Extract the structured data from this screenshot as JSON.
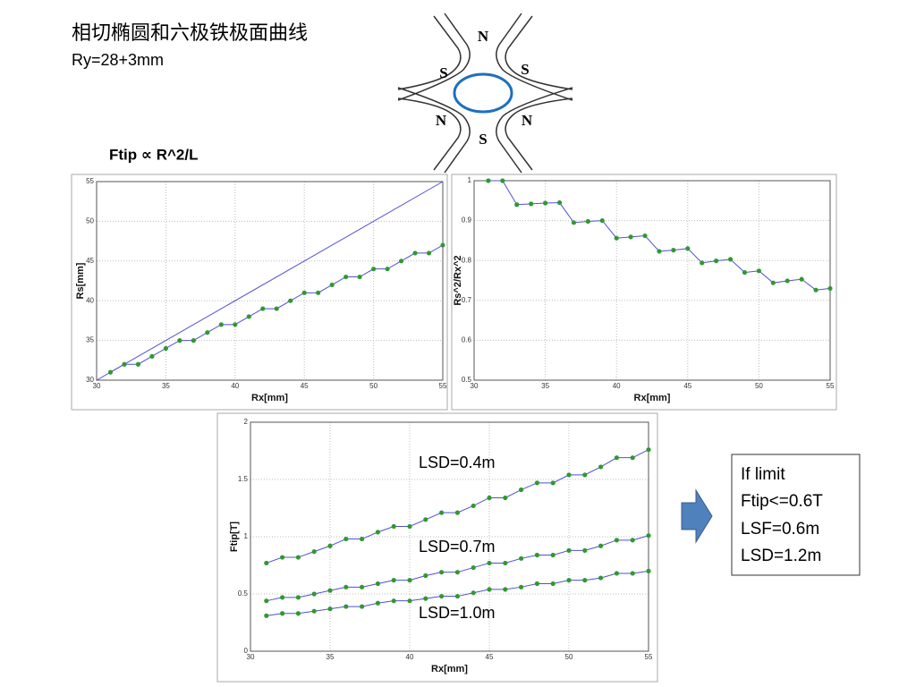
{
  "slide": {
    "title": "相切椭圆和六极铁极面曲线",
    "subtitle": "Ry=28+3mm",
    "formula": "Ftip ∝ R^2/L",
    "magnet": {
      "poles": [
        "N",
        "S",
        "S",
        "N",
        "N",
        "S"
      ]
    },
    "note": [
      "If limit",
      "Ftip<=0.6T",
      "LSF=0.6m",
      "LSD=1.2m"
    ]
  },
  "chart_data": [
    {
      "type": "line",
      "xlabel": "Rx[mm]",
      "ylabel": "Rs[mm]",
      "x": [
        31,
        32,
        33,
        34,
        35,
        36,
        37,
        38,
        39,
        40,
        41,
        42,
        43,
        44,
        45,
        46,
        47,
        48,
        49,
        50,
        51,
        52,
        53,
        54,
        55
      ],
      "xlim": [
        30,
        55
      ],
      "xticks": [
        30,
        35,
        40,
        45,
        50,
        55
      ],
      "ylim": [
        30,
        55
      ],
      "yticks": [
        30,
        35,
        40,
        45,
        50,
        55
      ],
      "grid": true,
      "series": [
        {
          "x": [
            30,
            55
          ],
          "values": [
            30,
            55
          ],
          "color": "#5050d8",
          "markers": false
        },
        {
          "values": [
            31,
            32,
            32,
            33,
            34,
            35,
            35,
            36,
            37,
            37,
            38,
            39,
            39,
            40,
            41,
            41,
            42,
            43,
            43,
            44,
            44,
            45,
            46,
            46,
            47
          ],
          "color": "#5050d8",
          "marker_color": "#2e9a2e",
          "markers": true
        }
      ]
    },
    {
      "type": "line",
      "xlabel": "Rx[mm]",
      "ylabel": "Rs^2/Rx^2",
      "x": [
        31,
        32,
        33,
        34,
        35,
        36,
        37,
        38,
        39,
        40,
        41,
        42,
        43,
        44,
        45,
        46,
        47,
        48,
        49,
        50,
        51,
        52,
        53,
        54,
        55
      ],
      "xlim": [
        30,
        55
      ],
      "xticks": [
        30,
        35,
        40,
        45,
        50,
        55
      ],
      "ylim": [
        0.5,
        1
      ],
      "yticks": [
        0.5,
        0.6,
        0.7,
        0.8,
        0.9,
        1
      ],
      "grid": true,
      "series": [
        {
          "values": [
            1,
            1,
            0.94,
            0.942,
            0.944,
            0.945,
            0.895,
            0.898,
            0.9,
            0.856,
            0.859,
            0.862,
            0.823,
            0.826,
            0.83,
            0.794,
            0.799,
            0.803,
            0.77,
            0.774,
            0.744,
            0.749,
            0.753,
            0.726,
            0.73
          ],
          "color": "#5050d8",
          "marker_color": "#2e9a2e",
          "markers": true
        }
      ]
    },
    {
      "type": "line",
      "xlabel": "Rx[mm]",
      "ylabel": "Ftip[T]",
      "x": [
        31,
        32,
        33,
        34,
        35,
        36,
        37,
        38,
        39,
        40,
        41,
        42,
        43,
        44,
        45,
        46,
        47,
        48,
        49,
        50,
        51,
        52,
        53,
        54,
        55
      ],
      "xlim": [
        30,
        55
      ],
      "xticks": [
        30,
        35,
        40,
        45,
        50,
        55
      ],
      "ylim": [
        0,
        2
      ],
      "yticks": [
        0,
        0.5,
        1,
        1.5,
        2
      ],
      "grid": true,
      "series": [
        {
          "name": "LSD=0.4m",
          "values": [
            0.77,
            0.82,
            0.82,
            0.87,
            0.92,
            0.98,
            0.98,
            1.04,
            1.09,
            1.09,
            1.15,
            1.21,
            1.21,
            1.27,
            1.34,
            1.34,
            1.41,
            1.47,
            1.47,
            1.54,
            1.54,
            1.61,
            1.69,
            1.69,
            1.76
          ],
          "color": "#5050d8",
          "marker_color": "#2e9a2e",
          "markers": true
        },
        {
          "name": "LSD=0.7m",
          "values": [
            0.44,
            0.47,
            0.47,
            0.5,
            0.53,
            0.56,
            0.56,
            0.59,
            0.62,
            0.62,
            0.66,
            0.69,
            0.69,
            0.73,
            0.77,
            0.77,
            0.81,
            0.84,
            0.84,
            0.88,
            0.88,
            0.92,
            0.97,
            0.97,
            1.01
          ],
          "color": "#5050d8",
          "marker_color": "#2e9a2e",
          "markers": true
        },
        {
          "name": "LSD=1.0m",
          "values": [
            0.31,
            0.33,
            0.33,
            0.35,
            0.37,
            0.39,
            0.39,
            0.42,
            0.44,
            0.44,
            0.46,
            0.48,
            0.48,
            0.51,
            0.54,
            0.54,
            0.56,
            0.59,
            0.59,
            0.62,
            0.62,
            0.64,
            0.68,
            0.68,
            0.7
          ],
          "color": "#5050d8",
          "marker_color": "#2e9a2e",
          "markers": true
        }
      ]
    }
  ]
}
